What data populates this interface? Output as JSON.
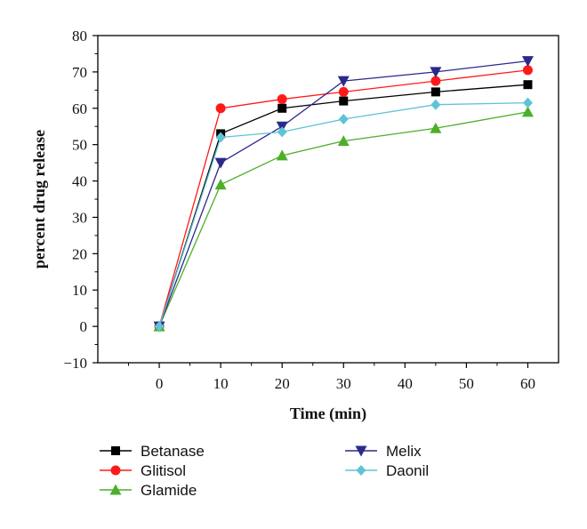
{
  "chart_data": {
    "type": "line",
    "title": "",
    "xlabel": "Time (min)",
    "ylabel": "percent drug release",
    "xlim": [
      -10,
      65
    ],
    "ylim": [
      -10,
      80
    ],
    "xticks": [
      0,
      10,
      20,
      30,
      40,
      50,
      60
    ],
    "yticks": [
      -10,
      0,
      10,
      20,
      30,
      40,
      50,
      60,
      70,
      80
    ],
    "grid": false,
    "legend_position": "bottom",
    "series": [
      {
        "name": "Betanase",
        "color": "#000000",
        "marker": "square",
        "x": [
          0,
          10,
          20,
          30,
          45,
          60
        ],
        "values": [
          0,
          53,
          60,
          62,
          64.5,
          66.5
        ]
      },
      {
        "name": "Glitisol",
        "color": "#ff1a1a",
        "marker": "circle",
        "x": [
          0,
          10,
          20,
          30,
          45,
          60
        ],
        "values": [
          0,
          60,
          62.5,
          64.5,
          67.5,
          70.5
        ]
      },
      {
        "name": "Glamide",
        "color": "#4caf2a",
        "marker": "triangle-up",
        "x": [
          0,
          10,
          20,
          30,
          45,
          60
        ],
        "values": [
          0,
          39,
          47,
          51,
          54.5,
          59
        ]
      },
      {
        "name": "Melix",
        "color": "#2b2a8c",
        "marker": "triangle-down",
        "x": [
          0,
          10,
          20,
          30,
          45,
          60
        ],
        "values": [
          0,
          45,
          55,
          67.5,
          70,
          73
        ]
      },
      {
        "name": "Daonil",
        "color": "#5fc3d6",
        "marker": "diamond",
        "x": [
          0,
          10,
          20,
          30,
          45,
          60
        ],
        "values": [
          0,
          52,
          53.5,
          57,
          61,
          61.5
        ]
      }
    ]
  }
}
